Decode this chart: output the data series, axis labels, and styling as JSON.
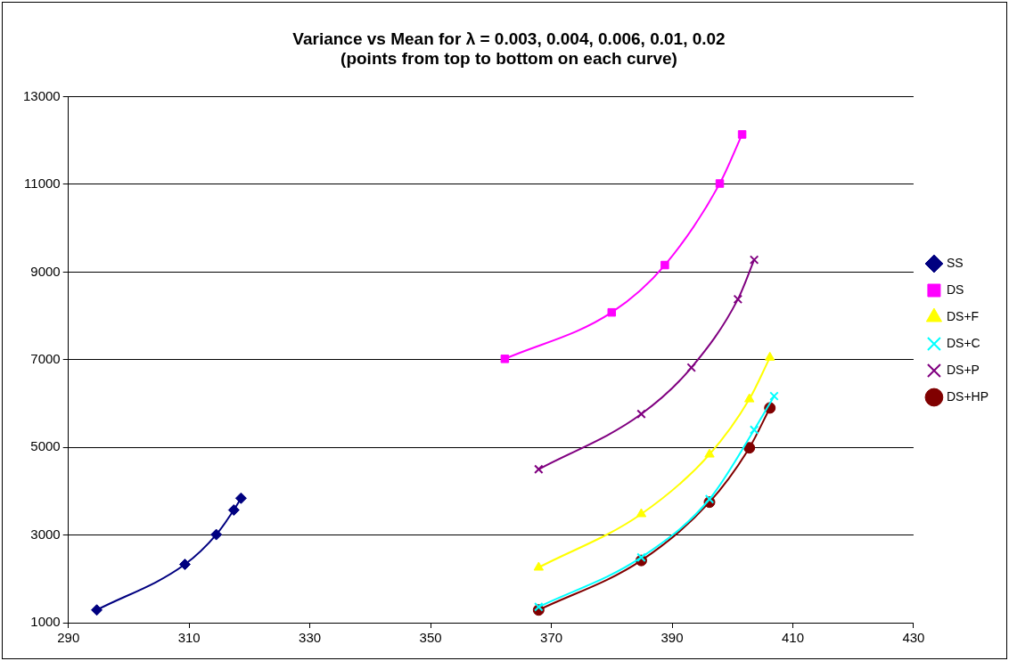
{
  "chart_data": {
    "type": "line",
    "title": "Variance vs Mean for λ = 0.003, 0.004, 0.006, 0.01, 0.02\n(points from top to bottom on each curve)",
    "xlim": [
      290,
      430
    ],
    "xticks": [
      290,
      310,
      330,
      350,
      370,
      390,
      410,
      430
    ],
    "ylim": [
      1000,
      13000
    ],
    "yticks": [
      1000,
      3000,
      5000,
      7000,
      9000,
      11000,
      13000
    ],
    "grid": "y",
    "legend": "right",
    "line_style": "solid",
    "series": [
      {
        "name": "SS",
        "color": "#000080",
        "marker": "diamond",
        "x": [
          294.7,
          309.3,
          314.5,
          317.4,
          318.6
        ],
        "values": [
          1290,
          2330,
          3010,
          3570,
          3840
        ]
      },
      {
        "name": "DS",
        "color": "#ff00ff",
        "marker": "square",
        "x": [
          362.3,
          380.0,
          388.8,
          397.9,
          401.6
        ],
        "values": [
          7020,
          8080,
          9160,
          11020,
          12140
        ]
      },
      {
        "name": "DS+F",
        "color": "#ffff00",
        "marker": "triangle",
        "x": [
          367.9,
          384.9,
          396.2,
          402.8,
          406.2
        ],
        "values": [
          2260,
          3480,
          4840,
          6100,
          7050
        ]
      },
      {
        "name": "DS+C",
        "color": "#00ffff",
        "marker": "cross",
        "x": [
          367.9,
          384.9,
          396.2,
          403.6,
          406.9
        ],
        "values": [
          1360,
          2490,
          3820,
          5400,
          6170
        ]
      },
      {
        "name": "DS+P",
        "color": "#800080",
        "marker": "cross",
        "x": [
          367.9,
          384.9,
          393.2,
          400.9,
          403.6
        ],
        "values": [
          4500,
          5760,
          6820,
          8380,
          9280
        ]
      },
      {
        "name": "DS+HP",
        "color": "#800000",
        "marker": "circle",
        "x": [
          367.9,
          384.9,
          396.2,
          402.8,
          406.2
        ],
        "values": [
          1290,
          2420,
          3750,
          4990,
          5900
        ]
      }
    ]
  }
}
